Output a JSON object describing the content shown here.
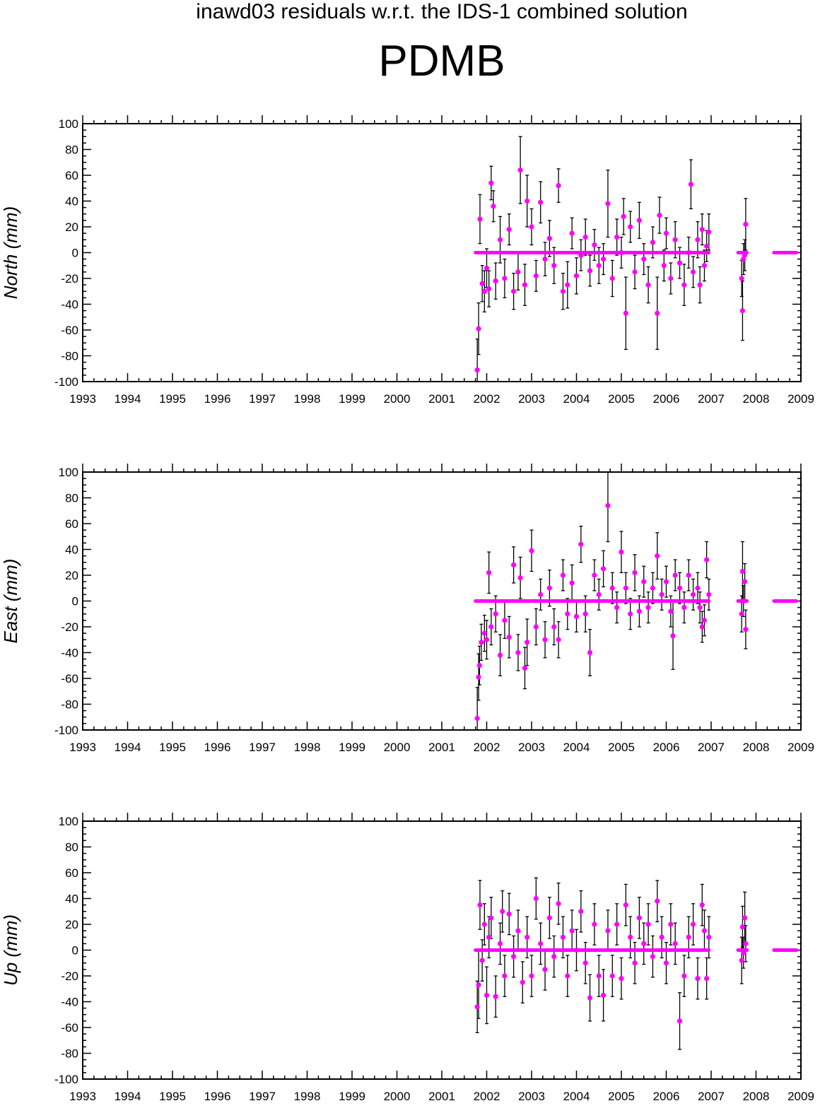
{
  "figure": {
    "supertitle": "inawd03 residuals w.r.t. the IDS-1 combined solution",
    "station": "PDMB"
  },
  "colors": {
    "points": "#ff00ff",
    "error_bars": "#000000",
    "axes": "#000000"
  },
  "chart_data": [
    {
      "type": "scatter",
      "ylabel": "North (mm)",
      "xlim": [
        1993,
        2009
      ],
      "ylim": [
        -100,
        100
      ],
      "x_ticks": [
        1993,
        1994,
        1995,
        1996,
        1997,
        1998,
        1999,
        2000,
        2001,
        2002,
        2003,
        2004,
        2005,
        2006,
        2007,
        2008,
        2009
      ],
      "y_ticks": [
        -100,
        -80,
        -60,
        -40,
        -20,
        0,
        20,
        40,
        60,
        80,
        100
      ],
      "zero_segments": [
        [
          2001.75,
          2006.95
        ],
        [
          2007.6,
          2007.8
        ],
        [
          2008.4,
          2008.9
        ]
      ],
      "points": [
        [
          2001.79,
          -91,
          24
        ],
        [
          2001.82,
          -59,
          20
        ],
        [
          2001.85,
          26,
          19
        ],
        [
          2001.9,
          -24,
          14
        ],
        [
          2001.95,
          -30,
          16
        ],
        [
          2002.0,
          -12,
          15
        ],
        [
          2002.05,
          -28,
          14
        ],
        [
          2002.1,
          54,
          13
        ],
        [
          2002.15,
          36,
          12
        ],
        [
          2002.2,
          -22,
          14
        ],
        [
          2002.3,
          10,
          18
        ],
        [
          2002.4,
          -20,
          15
        ],
        [
          2002.5,
          18,
          12
        ],
        [
          2002.6,
          -30,
          14
        ],
        [
          2002.7,
          -15,
          14
        ],
        [
          2002.75,
          64,
          26
        ],
        [
          2002.85,
          -25,
          16
        ],
        [
          2002.9,
          40,
          20
        ],
        [
          2003.0,
          20,
          14
        ],
        [
          2003.1,
          -18,
          12
        ],
        [
          2003.2,
          39,
          16
        ],
        [
          2003.3,
          -5,
          13
        ],
        [
          2003.4,
          11,
          14
        ],
        [
          2003.5,
          -10,
          14
        ],
        [
          2003.6,
          52,
          13
        ],
        [
          2003.7,
          -30,
          14
        ],
        [
          2003.8,
          -25,
          18
        ],
        [
          2003.9,
          15,
          12
        ],
        [
          2004.0,
          -18,
          14
        ],
        [
          2004.1,
          -2,
          12
        ],
        [
          2004.2,
          12,
          14
        ],
        [
          2004.3,
          -14,
          12
        ],
        [
          2004.4,
          6,
          12
        ],
        [
          2004.5,
          -10,
          14
        ],
        [
          2004.6,
          -5,
          12
        ],
        [
          2004.7,
          38,
          26
        ],
        [
          2004.8,
          -20,
          14
        ],
        [
          2004.9,
          12,
          14
        ],
        [
          2005.0,
          0,
          12
        ],
        [
          2005.05,
          28,
          14
        ],
        [
          2005.1,
          -47,
          28
        ],
        [
          2005.2,
          20,
          12
        ],
        [
          2005.3,
          -15,
          13
        ],
        [
          2005.4,
          25,
          14
        ],
        [
          2005.5,
          -5,
          12
        ],
        [
          2005.6,
          -25,
          14
        ],
        [
          2005.7,
          8,
          12
        ],
        [
          2005.8,
          -47,
          28
        ],
        [
          2005.85,
          29,
          14
        ],
        [
          2005.95,
          -10,
          12
        ],
        [
          2006.0,
          15,
          12
        ],
        [
          2006.1,
          -20,
          12
        ],
        [
          2006.2,
          10,
          14
        ],
        [
          2006.3,
          -8,
          12
        ],
        [
          2006.4,
          -25,
          16
        ],
        [
          2006.5,
          0,
          12
        ],
        [
          2006.55,
          53,
          19
        ],
        [
          2006.6,
          -15,
          12
        ],
        [
          2006.7,
          10,
          14
        ],
        [
          2006.75,
          -25,
          14
        ],
        [
          2006.8,
          18,
          12
        ],
        [
          2006.85,
          -10,
          12
        ],
        [
          2006.9,
          5,
          12
        ],
        [
          2006.95,
          16,
          14
        ],
        [
          2007.68,
          -20,
          14
        ],
        [
          2007.7,
          -45,
          23
        ],
        [
          2007.72,
          -5,
          12
        ],
        [
          2007.75,
          -2,
          12
        ],
        [
          2007.77,
          22,
          20
        ]
      ]
    },
    {
      "type": "scatter",
      "ylabel": "East (mm)",
      "xlim": [
        1993,
        2009
      ],
      "ylim": [
        -100,
        100
      ],
      "x_ticks": [
        1993,
        1994,
        1995,
        1996,
        1997,
        1998,
        1999,
        2000,
        2001,
        2002,
        2003,
        2004,
        2005,
        2006,
        2007,
        2008,
        2009
      ],
      "y_ticks": [
        -100,
        -80,
        -60,
        -40,
        -20,
        0,
        20,
        40,
        60,
        80,
        100
      ],
      "zero_segments": [
        [
          2001.75,
          2006.95
        ],
        [
          2007.6,
          2007.8
        ],
        [
          2008.4,
          2008.9
        ]
      ],
      "points": [
        [
          2001.79,
          -91,
          24
        ],
        [
          2001.82,
          -59,
          18
        ],
        [
          2001.84,
          -50,
          15
        ],
        [
          2001.88,
          -32,
          14
        ],
        [
          2001.95,
          -25,
          14
        ],
        [
          2002.0,
          -30,
          15
        ],
        [
          2002.05,
          22,
          16
        ],
        [
          2002.1,
          -20,
          14
        ],
        [
          2002.2,
          -10,
          14
        ],
        [
          2002.3,
          -42,
          16
        ],
        [
          2002.4,
          -15,
          14
        ],
        [
          2002.5,
          -28,
          16
        ],
        [
          2002.6,
          28,
          14
        ],
        [
          2002.7,
          -40,
          14
        ],
        [
          2002.75,
          18,
          16
        ],
        [
          2002.85,
          -52,
          16
        ],
        [
          2002.9,
          -32,
          18
        ],
        [
          2003.0,
          39,
          16
        ],
        [
          2003.1,
          -20,
          14
        ],
        [
          2003.2,
          5,
          12
        ],
        [
          2003.3,
          -30,
          14
        ],
        [
          2003.4,
          10,
          14
        ],
        [
          2003.5,
          -20,
          14
        ],
        [
          2003.6,
          -30,
          14
        ],
        [
          2003.7,
          20,
          12
        ],
        [
          2003.8,
          -10,
          12
        ],
        [
          2003.9,
          14,
          14
        ],
        [
          2004.0,
          -12,
          12
        ],
        [
          2004.1,
          44,
          14
        ],
        [
          2004.2,
          -10,
          14
        ],
        [
          2004.3,
          -40,
          18
        ],
        [
          2004.4,
          20,
          12
        ],
        [
          2004.5,
          5,
          12
        ],
        [
          2004.6,
          25,
          14
        ],
        [
          2004.7,
          74,
          28
        ],
        [
          2004.8,
          10,
          12
        ],
        [
          2004.9,
          -5,
          12
        ],
        [
          2005.0,
          38,
          16
        ],
        [
          2005.1,
          10,
          12
        ],
        [
          2005.2,
          -10,
          12
        ],
        [
          2005.3,
          22,
          14
        ],
        [
          2005.4,
          -8,
          12
        ],
        [
          2005.5,
          15,
          12
        ],
        [
          2005.6,
          -5,
          12
        ],
        [
          2005.7,
          10,
          12
        ],
        [
          2005.8,
          35,
          18
        ],
        [
          2005.9,
          5,
          12
        ],
        [
          2006.0,
          15,
          12
        ],
        [
          2006.1,
          -8,
          12
        ],
        [
          2006.15,
          -27,
          26
        ],
        [
          2006.2,
          20,
          12
        ],
        [
          2006.3,
          10,
          12
        ],
        [
          2006.4,
          -5,
          12
        ],
        [
          2006.5,
          20,
          12
        ],
        [
          2006.6,
          5,
          12
        ],
        [
          2006.7,
          10,
          12
        ],
        [
          2006.75,
          -5,
          12
        ],
        [
          2006.8,
          -20,
          12
        ],
        [
          2006.85,
          -15,
          12
        ],
        [
          2006.9,
          32,
          14
        ],
        [
          2006.95,
          5,
          12
        ],
        [
          2007.68,
          -10,
          14
        ],
        [
          2007.7,
          23,
          23
        ],
        [
          2007.72,
          0,
          12
        ],
        [
          2007.75,
          15,
          14
        ],
        [
          2007.77,
          -22,
          15
        ]
      ]
    },
    {
      "type": "scatter",
      "ylabel": "Up (mm)",
      "xlim": [
        1993,
        2009
      ],
      "ylim": [
        -100,
        100
      ],
      "x_ticks": [
        1993,
        1994,
        1995,
        1996,
        1997,
        1998,
        1999,
        2000,
        2001,
        2002,
        2003,
        2004,
        2005,
        2006,
        2007,
        2008,
        2009
      ],
      "y_ticks": [
        -100,
        -80,
        -60,
        -40,
        -20,
        0,
        20,
        40,
        60,
        80,
        100
      ],
      "zero_segments": [
        [
          2001.75,
          2006.95
        ],
        [
          2007.6,
          2007.8
        ],
        [
          2008.4,
          2008.9
        ]
      ],
      "points": [
        [
          2001.79,
          -44,
          20
        ],
        [
          2001.82,
          -27,
          26
        ],
        [
          2001.85,
          35,
          19
        ],
        [
          2001.9,
          -8,
          16
        ],
        [
          2001.95,
          20,
          16
        ],
        [
          2002.0,
          -35,
          22
        ],
        [
          2002.05,
          10,
          16
        ],
        [
          2002.1,
          25,
          16
        ],
        [
          2002.2,
          -36,
          16
        ],
        [
          2002.3,
          5,
          16
        ],
        [
          2002.35,
          30,
          16
        ],
        [
          2002.4,
          -20,
          16
        ],
        [
          2002.5,
          28,
          16
        ],
        [
          2002.6,
          -5,
          16
        ],
        [
          2002.7,
          15,
          16
        ],
        [
          2002.8,
          -25,
          16
        ],
        [
          2002.9,
          10,
          16
        ],
        [
          2003.0,
          -20,
          16
        ],
        [
          2003.1,
          40,
          16
        ],
        [
          2003.2,
          5,
          16
        ],
        [
          2003.3,
          -15,
          16
        ],
        [
          2003.4,
          25,
          16
        ],
        [
          2003.5,
          -5,
          16
        ],
        [
          2003.6,
          36,
          16
        ],
        [
          2003.7,
          10,
          16
        ],
        [
          2003.8,
          -20,
          16
        ],
        [
          2003.9,
          15,
          16
        ],
        [
          2004.0,
          0,
          16
        ],
        [
          2004.1,
          30,
          16
        ],
        [
          2004.2,
          -10,
          16
        ],
        [
          2004.3,
          -37,
          18
        ],
        [
          2004.4,
          20,
          16
        ],
        [
          2004.5,
          -20,
          16
        ],
        [
          2004.6,
          -35,
          20
        ],
        [
          2004.7,
          15,
          16
        ],
        [
          2004.8,
          -20,
          16
        ],
        [
          2004.9,
          20,
          16
        ],
        [
          2005.0,
          -22,
          16
        ],
        [
          2005.1,
          35,
          16
        ],
        [
          2005.2,
          10,
          16
        ],
        [
          2005.3,
          -10,
          16
        ],
        [
          2005.4,
          25,
          16
        ],
        [
          2005.5,
          5,
          16
        ],
        [
          2005.6,
          20,
          16
        ],
        [
          2005.7,
          -5,
          16
        ],
        [
          2005.8,
          38,
          16
        ],
        [
          2005.9,
          10,
          16
        ],
        [
          2006.0,
          -10,
          16
        ],
        [
          2006.1,
          20,
          16
        ],
        [
          2006.2,
          5,
          16
        ],
        [
          2006.3,
          -55,
          22
        ],
        [
          2006.4,
          -20,
          16
        ],
        [
          2006.5,
          10,
          16
        ],
        [
          2006.6,
          20,
          16
        ],
        [
          2006.7,
          -22,
          16
        ],
        [
          2006.8,
          35,
          16
        ],
        [
          2006.85,
          15,
          16
        ],
        [
          2006.9,
          -22,
          16
        ],
        [
          2006.95,
          10,
          16
        ],
        [
          2007.68,
          -8,
          18
        ],
        [
          2007.7,
          18,
          16
        ],
        [
          2007.72,
          -2,
          12
        ],
        [
          2007.75,
          25,
          20
        ],
        [
          2007.77,
          5,
          14
        ]
      ]
    }
  ]
}
